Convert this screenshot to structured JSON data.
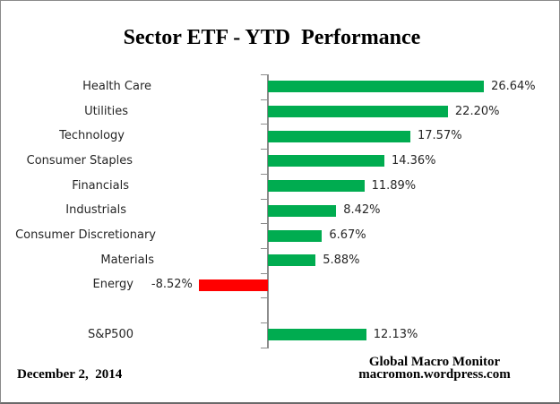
{
  "chart": {
    "title": "Sector ETF - YTD  Performance",
    "footer_left": "December 2,  2014",
    "footer_right_line1": "Global Macro Monitor",
    "footer_right_line2": "macromon.wordpress.com"
  },
  "chart_data": {
    "type": "bar",
    "orientation": "horizontal",
    "title": "Sector ETF - YTD  Performance",
    "xlabel": "",
    "ylabel": "",
    "categories": [
      "Health Care",
      "Utilities",
      "Technology",
      "Consumer Staples",
      "Financials",
      "Industrials",
      "Consumer Discretionary",
      "Materials",
      "Energy",
      "",
      "S&P500"
    ],
    "values": [
      26.64,
      22.2,
      17.57,
      14.36,
      11.89,
      8.42,
      6.67,
      5.88,
      -8.52,
      null,
      12.13
    ],
    "value_labels": [
      "26.64%",
      "22.20%",
      "17.57%",
      "14.36%",
      "11.89%",
      "8.42%",
      "6.67%",
      "5.88%",
      "-8.52%",
      "",
      "12.13%"
    ],
    "xlim": [
      -10,
      30
    ],
    "grid": false,
    "legend": false,
    "positive_color": "#00AC50",
    "negative_color": "#FF0000",
    "axis_color": "#8C8C8C",
    "date_label": "December 2,  2014",
    "source_line1": "Global Macro Monitor",
    "source_line2": "macromon.wordpress.com"
  }
}
